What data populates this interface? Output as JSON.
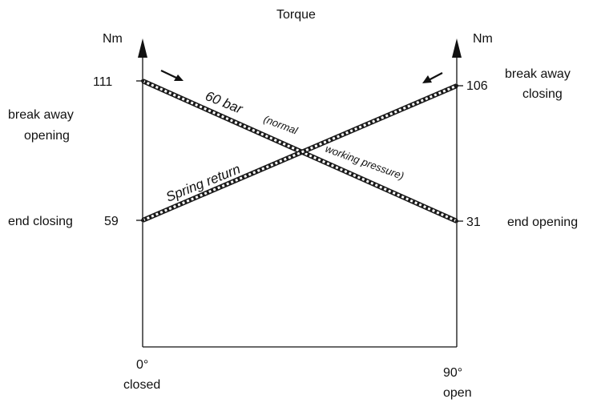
{
  "title": "Torque",
  "left_axis": {
    "unit": "Nm",
    "top_value": "111",
    "bottom_value": "59",
    "top_label_line1": "break away",
    "top_label_line2": "opening",
    "bottom_label": "end closing"
  },
  "right_axis": {
    "unit": "Nm",
    "top_value": "106",
    "bottom_value": "31",
    "top_label_line1": "break away",
    "top_label_line2": "closing",
    "bottom_label": "end opening"
  },
  "x_axis": {
    "start_value": "0°",
    "start_label": "closed",
    "end_value": "90°",
    "end_label": "open"
  },
  "lines": {
    "pressure_label_main": "60 bar",
    "pressure_label_1": "(normal",
    "pressure_label_2": "working pressure)",
    "spring_label": "Spring return"
  },
  "chart_data": {
    "type": "line",
    "x": [
      0,
      90
    ],
    "series": [
      {
        "values": [
          111,
          31
        ]
      },
      {
        "values": [
          59,
          106
        ]
      }
    ],
    "colors": {
      "stroke": "#1a1a1a",
      "hatch": "#ffffff"
    }
  }
}
